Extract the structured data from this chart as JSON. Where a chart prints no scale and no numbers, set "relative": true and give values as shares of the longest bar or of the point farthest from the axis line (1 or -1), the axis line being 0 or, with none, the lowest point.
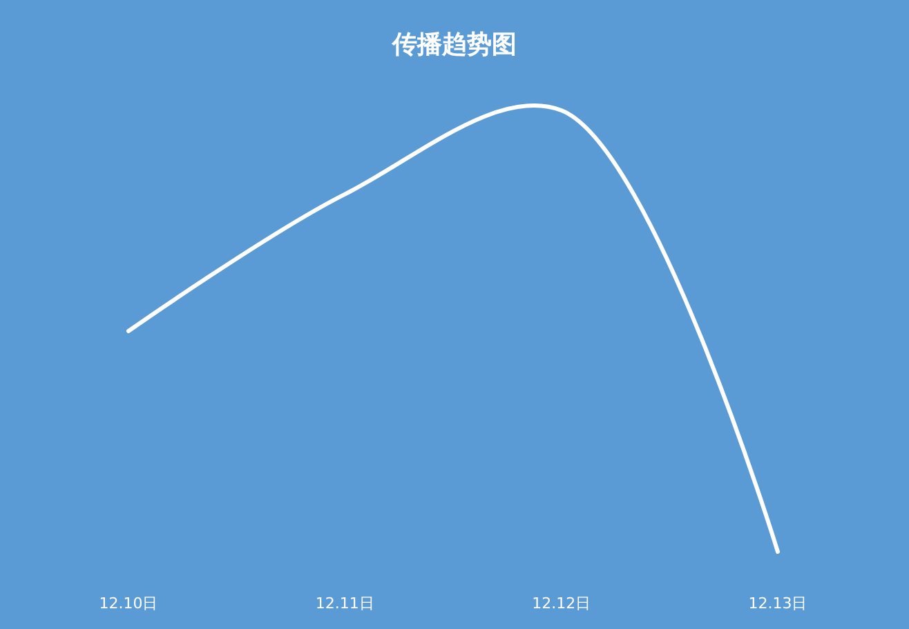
{
  "chart_data": {
    "type": "line",
    "title": "传播趋势图",
    "categories": [
      "12.10日",
      "12.11日",
      "12.12日",
      "12.13日"
    ],
    "relative": true,
    "series": [
      {
        "color": "#ffffff",
        "values": [
          0.5,
          0.81,
          1,
          0
        ]
      }
    ]
  }
}
